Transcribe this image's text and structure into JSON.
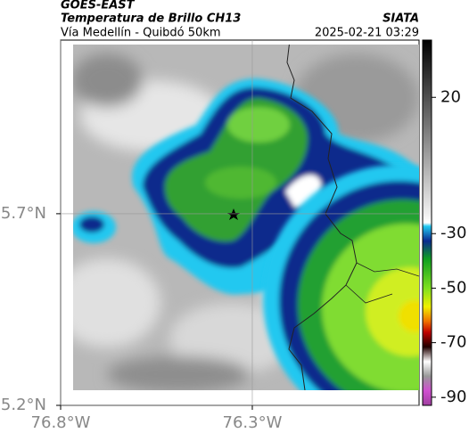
{
  "header": {
    "source": "GOES-EAST",
    "title": "Temperatura de Brillo CH13",
    "org": "SIATA",
    "subtitle": "Vía Medellín - Quibdó 50km",
    "timestamp": "2025-02-21 03:29"
  },
  "map": {
    "xlim": [
      -76.8,
      -75.865
    ],
    "ylim": [
      5.2,
      6.153
    ],
    "xticks": [
      {
        "value": -76.8,
        "label": "76.8°W"
      },
      {
        "value": -76.3,
        "label": "76.3°W"
      }
    ],
    "yticks": [
      {
        "value": 5.2,
        "label": "5.2°N"
      },
      {
        "value": 5.7,
        "label": "5.7°N"
      }
    ],
    "grid": true
  },
  "colorbar": {
    "lim": [
      41,
      -93
    ],
    "ticks": [
      20,
      -30,
      -50,
      -70,
      -90
    ]
  }
}
